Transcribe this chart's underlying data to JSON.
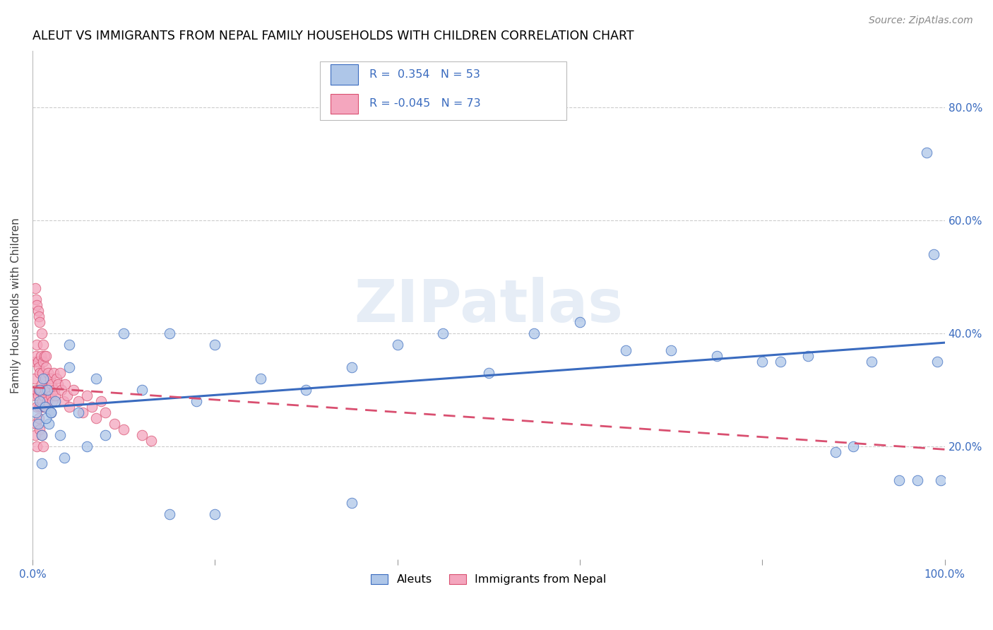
{
  "title": "ALEUT VS IMMIGRANTS FROM NEPAL FAMILY HOUSEHOLDS WITH CHILDREN CORRELATION CHART",
  "source": "Source: ZipAtlas.com",
  "ylabel": "Family Households with Children",
  "ytick_labels": [
    "20.0%",
    "40.0%",
    "60.0%",
    "80.0%"
  ],
  "ytick_values": [
    0.2,
    0.4,
    0.6,
    0.8
  ],
  "xlim": [
    0.0,
    1.0
  ],
  "ylim": [
    0.0,
    0.9
  ],
  "color_aleut": "#aec6e8",
  "color_nepal": "#f4a6be",
  "color_line_aleut": "#3a6bbf",
  "color_line_nepal": "#d94f70",
  "watermark_text": "ZIPatlas",
  "aleut_x": [
    0.004,
    0.006,
    0.008,
    0.01,
    0.012,
    0.014,
    0.016,
    0.018,
    0.02,
    0.025,
    0.03,
    0.035,
    0.04,
    0.05,
    0.06,
    0.07,
    0.08,
    0.1,
    0.12,
    0.15,
    0.18,
    0.2,
    0.25,
    0.3,
    0.35,
    0.4,
    0.45,
    0.5,
    0.55,
    0.6,
    0.65,
    0.7,
    0.75,
    0.8,
    0.82,
    0.85,
    0.88,
    0.9,
    0.92,
    0.95,
    0.97,
    0.98,
    0.988,
    0.992,
    0.996,
    0.008,
    0.01,
    0.015,
    0.02,
    0.04,
    0.15,
    0.2,
    0.35
  ],
  "aleut_y": [
    0.26,
    0.24,
    0.28,
    0.22,
    0.32,
    0.27,
    0.3,
    0.24,
    0.26,
    0.28,
    0.22,
    0.18,
    0.38,
    0.26,
    0.2,
    0.32,
    0.22,
    0.4,
    0.3,
    0.4,
    0.28,
    0.38,
    0.32,
    0.3,
    0.34,
    0.38,
    0.4,
    0.33,
    0.4,
    0.42,
    0.37,
    0.37,
    0.36,
    0.35,
    0.35,
    0.36,
    0.19,
    0.2,
    0.35,
    0.14,
    0.14,
    0.72,
    0.54,
    0.35,
    0.14,
    0.3,
    0.17,
    0.25,
    0.26,
    0.34,
    0.08,
    0.08,
    0.1
  ],
  "nepal_x": [
    0.002,
    0.003,
    0.003,
    0.004,
    0.004,
    0.005,
    0.005,
    0.006,
    0.006,
    0.007,
    0.007,
    0.008,
    0.008,
    0.009,
    0.009,
    0.01,
    0.01,
    0.011,
    0.011,
    0.012,
    0.012,
    0.013,
    0.013,
    0.014,
    0.014,
    0.015,
    0.016,
    0.017,
    0.018,
    0.019,
    0.02,
    0.021,
    0.022,
    0.023,
    0.024,
    0.025,
    0.026,
    0.028,
    0.03,
    0.032,
    0.034,
    0.036,
    0.038,
    0.04,
    0.045,
    0.05,
    0.055,
    0.06,
    0.065,
    0.07,
    0.075,
    0.08,
    0.09,
    0.1,
    0.12,
    0.13,
    0.003,
    0.004,
    0.005,
    0.006,
    0.007,
    0.008,
    0.01,
    0.012,
    0.015,
    0.02,
    0.003,
    0.004,
    0.005,
    0.007,
    0.008,
    0.01,
    0.012
  ],
  "nepal_y": [
    0.32,
    0.35,
    0.29,
    0.36,
    0.3,
    0.38,
    0.27,
    0.35,
    0.29,
    0.34,
    0.3,
    0.33,
    0.27,
    0.36,
    0.3,
    0.31,
    0.27,
    0.33,
    0.28,
    0.35,
    0.29,
    0.27,
    0.36,
    0.3,
    0.32,
    0.34,
    0.28,
    0.33,
    0.3,
    0.32,
    0.29,
    0.31,
    0.28,
    0.33,
    0.3,
    0.29,
    0.32,
    0.31,
    0.33,
    0.3,
    0.28,
    0.31,
    0.29,
    0.27,
    0.3,
    0.28,
    0.26,
    0.29,
    0.27,
    0.25,
    0.28,
    0.26,
    0.24,
    0.23,
    0.22,
    0.21,
    0.48,
    0.46,
    0.45,
    0.44,
    0.43,
    0.42,
    0.4,
    0.38,
    0.36,
    0.26,
    0.22,
    0.24,
    0.2,
    0.25,
    0.23,
    0.22,
    0.2
  ],
  "aleut_line_x0": 0.0,
  "aleut_line_x1": 1.0,
  "aleut_line_y0": 0.268,
  "aleut_line_y1": 0.384,
  "nepal_line_x0": 0.0,
  "nepal_line_x1": 1.0,
  "nepal_line_y0": 0.305,
  "nepal_line_y1": 0.195
}
